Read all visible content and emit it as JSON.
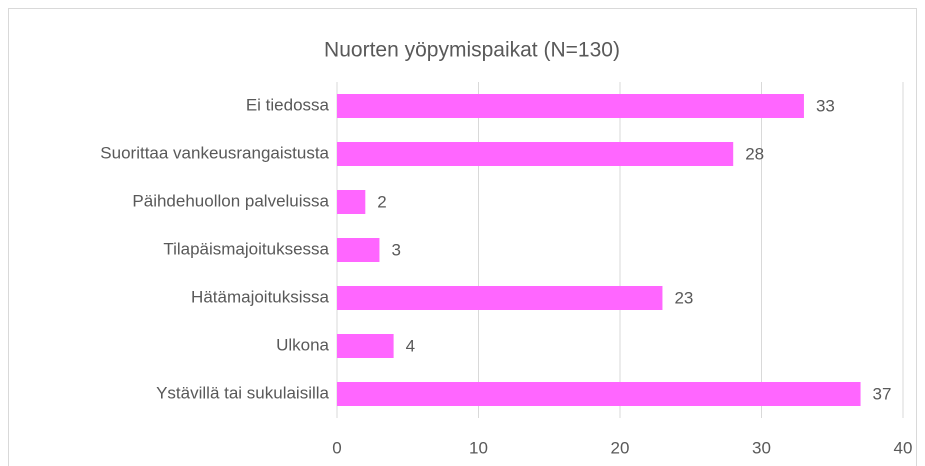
{
  "chart_data": {
    "type": "barh",
    "title": "Nuorten yöpymispaikat (N=130)",
    "categories": [
      "Ei tiedossa",
      "Suorittaa vankeusrangaistusta",
      "Päihdehuollon palveluissa",
      "Tilapäismajoituksessa",
      "Hätämajoituksissa",
      "Ulkona",
      "Ystävillä tai sukulaisilla"
    ],
    "values": [
      33,
      28,
      2,
      3,
      23,
      4,
      37
    ],
    "color": "#ff66ff",
    "xlim": [
      0,
      40
    ],
    "xticks": [
      0,
      10,
      20,
      30,
      40
    ],
    "grid": true
  }
}
